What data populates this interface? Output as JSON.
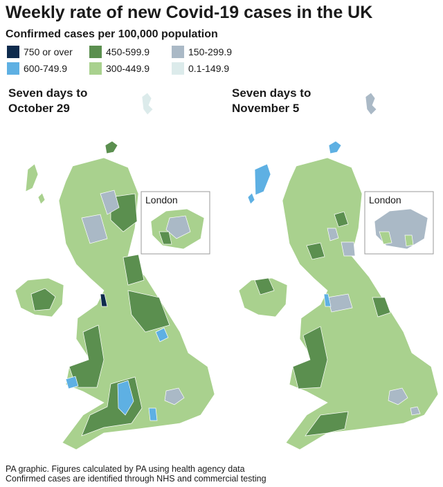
{
  "header": {
    "title": "Weekly rate of new Covid-19 cases in the UK",
    "subtitle": "Confirmed cases per 100,000 population"
  },
  "legend": {
    "items": [
      {
        "label": "750 or over",
        "color": "#0e2b4d"
      },
      {
        "label": "600-749.9",
        "color": "#5eb0e3"
      },
      {
        "label": "450-599.9",
        "color": "#5b8f4f"
      },
      {
        "label": "300-449.9",
        "color": "#a9d18e"
      },
      {
        "label": "150-299.9",
        "color": "#aab9c6"
      },
      {
        "label": "0.1-149.9",
        "color": "#dcebeb"
      }
    ]
  },
  "maps": [
    {
      "caption": [
        "Seven days to",
        "October 29"
      ],
      "inset_label": "London"
    },
    {
      "caption": [
        "Seven days to",
        "November 5"
      ],
      "inset_label": "London"
    }
  ],
  "footer": [
    "PA graphic. Figures calculated by PA using health agency data",
    "Confirmed cases are identified through NHS and commercial testing"
  ]
}
